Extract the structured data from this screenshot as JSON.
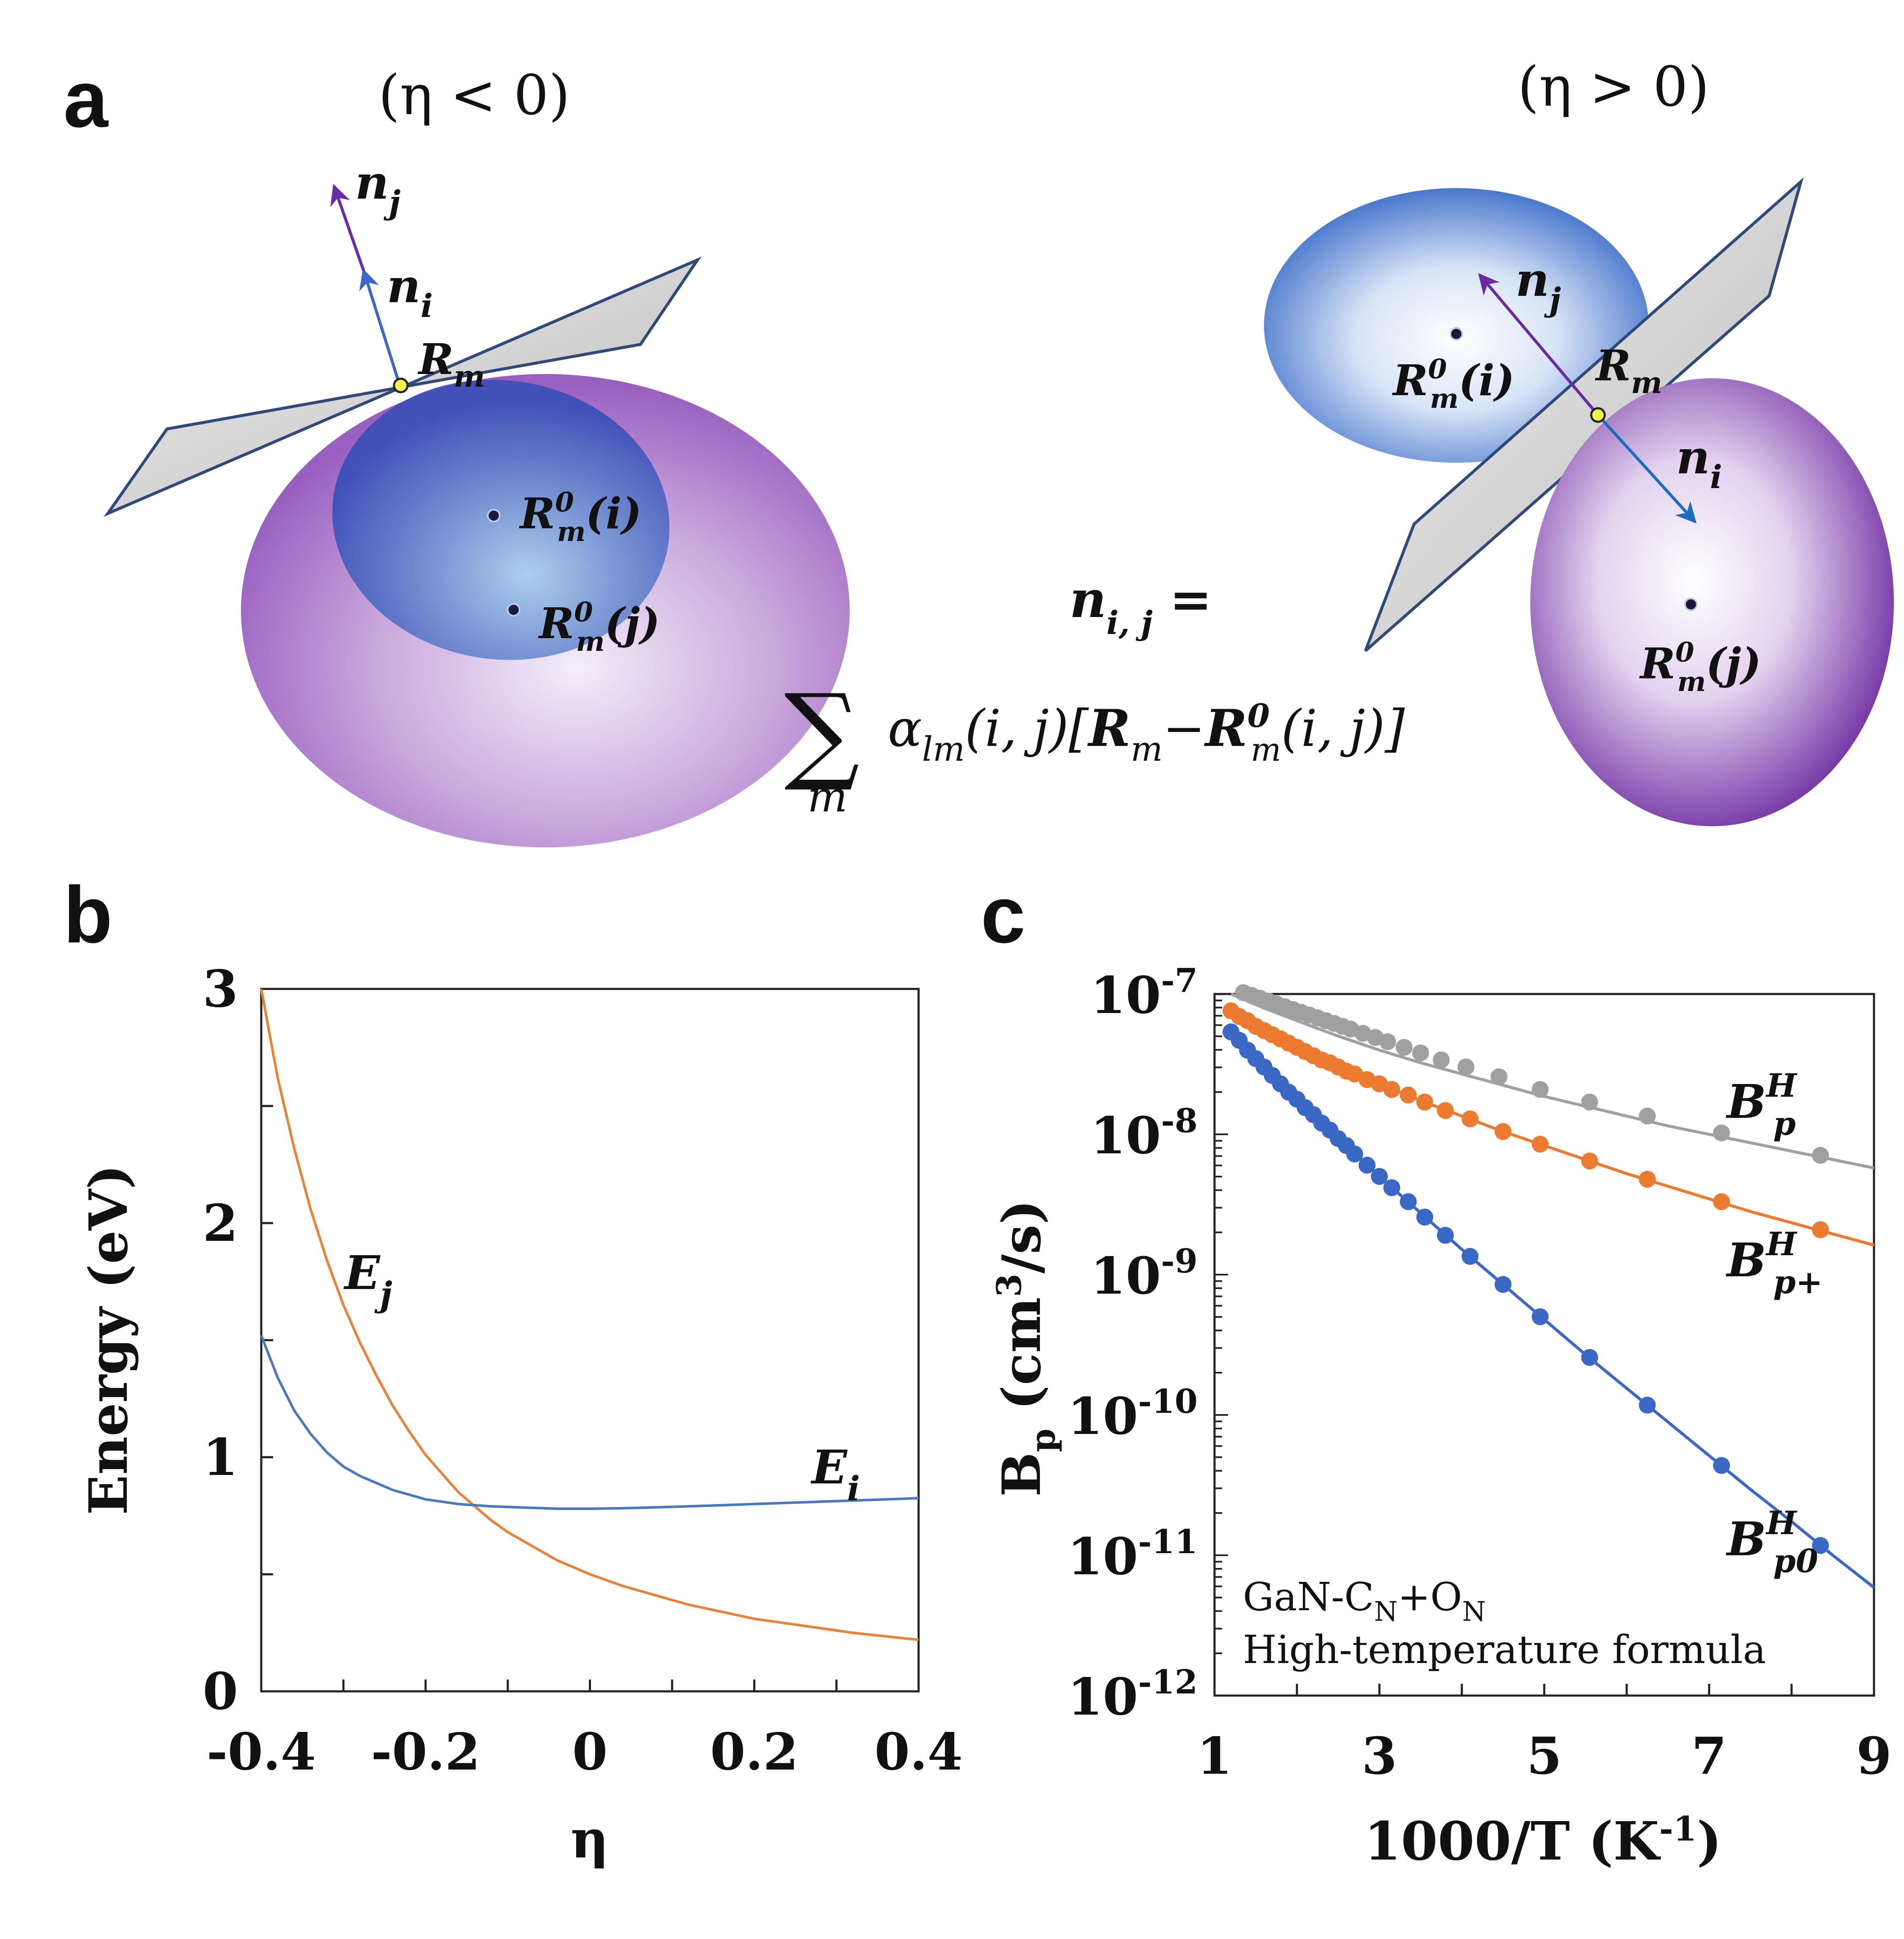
{
  "panel_a": {
    "letter": "a",
    "left_condition": "(η < 0)",
    "right_condition": "(η > 0)",
    "labels": {
      "n": "n",
      "sub_i": "i",
      "sub_j": "j",
      "R": "R",
      "sub_m": "m",
      "sup_0": "0",
      "arg_i": "(i)",
      "arg_j": "(j)"
    },
    "formula_lhs": "n",
    "formula_lhs_sub": "i, j",
    "formula_eq": "=",
    "formula_sum": "∑",
    "formula_sum_index": "m",
    "formula_body_alpha": "α",
    "formula_body_alpha_sub": "lm",
    "formula_body_args": "(i, j)[",
    "formula_body_R": "R",
    "formula_body_minus": "−",
    "formula_body_R0": "R",
    "formula_body_end": "(i, j)]",
    "colors": {
      "blue": "#3a68c8",
      "purple": "#7a3aa8",
      "plane": "#c8c8c8",
      "point": "#f2f24a"
    }
  },
  "panel_b": {
    "letter": "b",
    "chart_data": {
      "type": "line",
      "xlabel": "η",
      "ylabel": "Energy (eV)",
      "xlim": [
        -0.4,
        0.4
      ],
      "ylim": [
        0,
        3
      ],
      "xticks": [
        "-0.4",
        "-0.2",
        "0",
        "0.2",
        "0.4"
      ],
      "yticks": [
        "0",
        "1",
        "2",
        "3"
      ],
      "series": [
        {
          "name": "E_j",
          "label_main": "E",
          "label_sub": "j",
          "color": "#e8823a",
          "x": [
            -0.4,
            -0.38,
            -0.36,
            -0.34,
            -0.32,
            -0.3,
            -0.28,
            -0.26,
            -0.24,
            -0.22,
            -0.2,
            -0.18,
            -0.16,
            -0.14,
            -0.12,
            -0.1,
            -0.08,
            -0.06,
            -0.04,
            -0.02,
            0,
            0.04,
            0.08,
            0.12,
            0.16,
            0.2,
            0.24,
            0.28,
            0.32,
            0.36,
            0.4
          ],
          "y": [
            3.0,
            2.62,
            2.32,
            2.06,
            1.84,
            1.65,
            1.49,
            1.35,
            1.22,
            1.11,
            1.01,
            0.93,
            0.85,
            0.79,
            0.73,
            0.68,
            0.64,
            0.6,
            0.56,
            0.53,
            0.5,
            0.45,
            0.41,
            0.37,
            0.34,
            0.31,
            0.29,
            0.27,
            0.25,
            0.235,
            0.22
          ]
        },
        {
          "name": "E_i",
          "label_main": "E",
          "label_sub": "i",
          "color": "#4a78c0",
          "x": [
            -0.4,
            -0.38,
            -0.36,
            -0.34,
            -0.32,
            -0.3,
            -0.28,
            -0.26,
            -0.24,
            -0.22,
            -0.2,
            -0.16,
            -0.12,
            -0.08,
            -0.04,
            0,
            0.04,
            0.08,
            0.12,
            0.16,
            0.2,
            0.24,
            0.28,
            0.32,
            0.36,
            0.4
          ],
          "y": [
            1.52,
            1.34,
            1.2,
            1.1,
            1.02,
            0.96,
            0.92,
            0.89,
            0.86,
            0.84,
            0.82,
            0.8,
            0.79,
            0.785,
            0.78,
            0.78,
            0.782,
            0.786,
            0.79,
            0.795,
            0.8,
            0.805,
            0.81,
            0.815,
            0.82,
            0.825
          ]
        }
      ]
    }
  },
  "panel_c": {
    "letter": "c",
    "chart_data": {
      "type": "scatter",
      "xlabel_main": "1000/T (K",
      "xlabel_sup": "-1",
      "xlabel_end": ")",
      "ylabel_main": "B",
      "ylabel_sub": "p",
      "ylabel_unit": " (cm",
      "ylabel_sup": "3",
      "ylabel_end": "/s)",
      "xlim": [
        1,
        9
      ],
      "ylim_exponent": [
        -12,
        -7
      ],
      "log_y": true,
      "xticks": [
        "1",
        "3",
        "5",
        "7",
        "9"
      ],
      "yticks": [
        {
          "base": "10",
          "exp": "-7"
        },
        {
          "base": "10",
          "exp": "-8"
        },
        {
          "base": "10",
          "exp": "-9"
        },
        {
          "base": "10",
          "exp": "-10"
        },
        {
          "base": "10",
          "exp": "-11"
        },
        {
          "base": "10",
          "exp": "-12"
        }
      ],
      "annotation_line1_a": "GaN-C",
      "annotation_line1_sub1": "N",
      "annotation_line1_b": "+O",
      "annotation_line1_sub2": "N",
      "annotation_line2": "High-temperature formula",
      "series": [
        {
          "name": "B_p^H",
          "label_main": "B",
          "label_sup": "H",
          "label_sub": "p",
          "color": "#a0a0a0",
          "line_x": [
            1.2,
            1.6,
            2,
            2.5,
            3,
            3.5,
            4,
            4.5,
            5,
            5.5,
            6,
            6.5,
            7,
            7.5,
            8,
            8.5,
            9
          ],
          "line_y": [
            -7.0,
            -7.1,
            -7.19,
            -7.3,
            -7.4,
            -7.49,
            -7.57,
            -7.65,
            -7.73,
            -7.8,
            -7.87,
            -7.94,
            -8.0,
            -8.06,
            -8.12,
            -8.18,
            -8.24
          ],
          "points_x": [
            1.35,
            1.45,
            1.55,
            1.65,
            1.75,
            1.85,
            1.95,
            2.05,
            2.15,
            2.25,
            2.35,
            2.45,
            2.55,
            2.65,
            2.8,
            2.95,
            3.1,
            3.3,
            3.5,
            3.75,
            4.05,
            4.45,
            4.95,
            5.55,
            6.25,
            7.15,
            8.35
          ],
          "points_y": [
            -6.99,
            -7.01,
            -7.03,
            -7.05,
            -7.07,
            -7.09,
            -7.11,
            -7.13,
            -7.15,
            -7.17,
            -7.19,
            -7.21,
            -7.23,
            -7.25,
            -7.28,
            -7.31,
            -7.34,
            -7.38,
            -7.42,
            -7.47,
            -7.52,
            -7.59,
            -7.68,
            -7.77,
            -7.87,
            -7.99,
            -8.15
          ]
        },
        {
          "name": "B_p+^H",
          "label_main": "B",
          "label_sup": "H",
          "label_sub": "p+",
          "color": "#ec7a30",
          "line_x": [
            1.2,
            1.6,
            2,
            2.5,
            3,
            3.5,
            4,
            4.5,
            5,
            5.5,
            6,
            6.5,
            7,
            7.5,
            8,
            8.5,
            9
          ],
          "line_y": [
            -7.12,
            -7.26,
            -7.38,
            -7.52,
            -7.64,
            -7.76,
            -7.87,
            -7.98,
            -8.08,
            -8.18,
            -8.28,
            -8.37,
            -8.46,
            -8.55,
            -8.63,
            -8.71,
            -8.79
          ],
          "points_x": [
            1.2,
            1.3,
            1.4,
            1.5,
            1.6,
            1.7,
            1.8,
            1.9,
            2.0,
            2.1,
            2.2,
            2.3,
            2.4,
            2.5,
            2.6,
            2.7,
            2.85,
            3.0,
            3.15,
            3.35,
            3.55,
            3.8,
            4.1,
            4.5,
            4.95,
            5.55,
            6.25,
            7.15,
            8.35
          ],
          "points_y": [
            -7.12,
            -7.16,
            -7.19,
            -7.23,
            -7.26,
            -7.29,
            -7.32,
            -7.35,
            -7.38,
            -7.41,
            -7.44,
            -7.47,
            -7.49,
            -7.52,
            -7.55,
            -7.57,
            -7.61,
            -7.64,
            -7.68,
            -7.72,
            -7.77,
            -7.83,
            -7.89,
            -7.98,
            -8.07,
            -8.19,
            -8.32,
            -8.48,
            -8.68
          ]
        },
        {
          "name": "B_p0^H",
          "label_main": "B",
          "label_sup": "H",
          "label_sub": "p0",
          "color": "#3a68c4",
          "line_x": [
            1.2,
            1.6,
            2,
            2.5,
            3,
            3.5,
            4,
            4.5,
            5,
            5.5,
            6,
            6.5,
            7,
            7.5,
            8,
            8.5,
            9
          ],
          "line_y": [
            -7.27,
            -7.52,
            -7.75,
            -8.03,
            -8.3,
            -8.56,
            -8.82,
            -9.07,
            -9.32,
            -9.57,
            -9.81,
            -10.05,
            -10.29,
            -10.53,
            -10.76,
            -11.0,
            -11.23
          ],
          "points_x": [
            1.2,
            1.3,
            1.4,
            1.5,
            1.6,
            1.7,
            1.8,
            1.9,
            2.0,
            2.1,
            2.2,
            2.3,
            2.4,
            2.5,
            2.6,
            2.7,
            2.85,
            3.0,
            3.15,
            3.35,
            3.55,
            3.8,
            4.1,
            4.5,
            4.95,
            5.55,
            6.25,
            7.15,
            8.35
          ],
          "points_y": [
            -7.27,
            -7.33,
            -7.4,
            -7.46,
            -7.52,
            -7.58,
            -7.64,
            -7.7,
            -7.75,
            -7.81,
            -7.86,
            -7.92,
            -7.97,
            -8.03,
            -8.08,
            -8.14,
            -8.22,
            -8.3,
            -8.38,
            -8.48,
            -8.59,
            -8.72,
            -8.87,
            -9.07,
            -9.3,
            -9.59,
            -9.93,
            -10.36,
            -10.93
          ]
        }
      ]
    }
  }
}
